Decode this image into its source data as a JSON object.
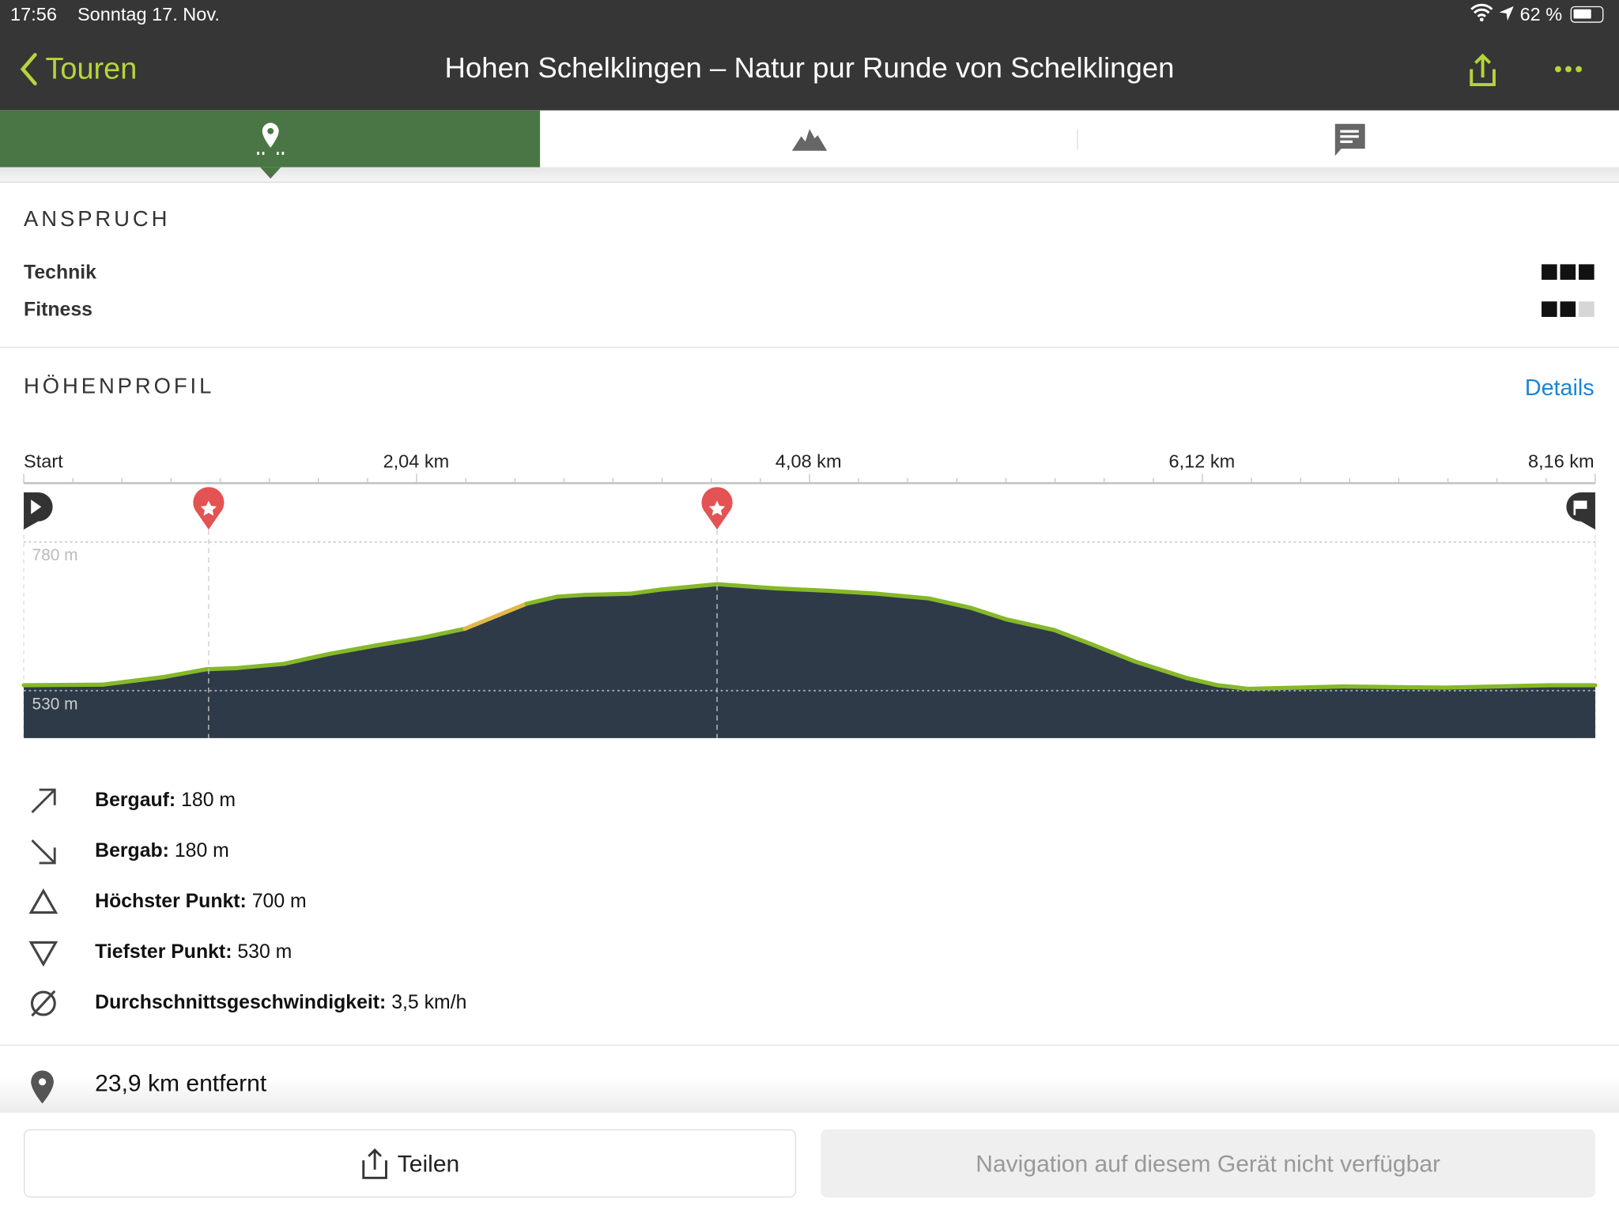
{
  "status_bar": {
    "time": "17:56",
    "date": "Sonntag 17. Nov.",
    "battery": "62 %"
  },
  "nav": {
    "back_label": "Touren",
    "title": "Hohen Schelklingen – Natur pur Runde von Schelklingen"
  },
  "tabs": [
    {
      "icon": "map-pin-icon",
      "active": true
    },
    {
      "icon": "mountain-icon",
      "active": false
    },
    {
      "icon": "comment-icon",
      "active": false
    }
  ],
  "anspruch": {
    "heading": "ANSPRUCH",
    "rows": [
      {
        "label": "Technik",
        "level": 3,
        "max": 3
      },
      {
        "label": "Fitness",
        "level": 2,
        "max": 3
      }
    ]
  },
  "profile": {
    "heading": "HÖHENPROFIL",
    "details_link": "Details"
  },
  "chart_data": {
    "type": "area",
    "x_ticks": [
      "Start",
      "2,04 km",
      "4,08 km",
      "6,12 km",
      "8,16 km"
    ],
    "xlim": [
      0,
      8.16
    ],
    "ylim": [
      530,
      780
    ],
    "y_labels": [
      "780 m",
      "530 m"
    ],
    "waypoints_km": [
      0.96,
      3.6
    ],
    "x": [
      0,
      0.41,
      0.73,
      0.95,
      1.11,
      1.35,
      1.59,
      1.83,
      2.07,
      2.29,
      2.45,
      2.61,
      2.77,
      2.91,
      3.15,
      3.31,
      3.6,
      3.9,
      4.17,
      4.43,
      4.7,
      4.92,
      5.1,
      5.35,
      5.56,
      5.77,
      6.04,
      6.2,
      6.36,
      6.85,
      7.38,
      7.92,
      8.16
    ],
    "y": [
      539,
      540,
      553,
      566,
      568,
      575,
      592,
      606,
      619,
      634,
      655,
      676,
      688,
      691,
      693,
      700,
      709,
      702,
      698,
      693,
      685,
      669,
      650,
      632,
      606,
      579,
      551,
      539,
      533,
      537,
      535,
      539,
      539
    ],
    "colors": {
      "fill": "#2e3a47",
      "line": "#86b829",
      "steep": "#e0b84a",
      "waypoint": "#e45353"
    }
  },
  "stats": [
    {
      "icon": "arrow-up-right-icon",
      "label": "Bergauf:",
      "value": "180 m"
    },
    {
      "icon": "arrow-down-right-icon",
      "label": "Bergab:",
      "value": "180 m"
    },
    {
      "icon": "triangle-up-icon",
      "label": "Höchster Punkt:",
      "value": "700 m"
    },
    {
      "icon": "triangle-down-icon",
      "label": "Tiefster Punkt:",
      "value": "530 m"
    },
    {
      "icon": "average-icon",
      "label": "Durchschnittsgeschwindigkeit:",
      "value": "3,5 km/h"
    }
  ],
  "distance": "23,9 km entfernt",
  "footer": {
    "share_label": "Teilen",
    "nav_label": "Navigation auf diesem Gerät nicht verfügbar"
  },
  "colors": {
    "accent": "#b6d53b",
    "active_tab": "#4a7645",
    "link": "#1a85d6"
  }
}
